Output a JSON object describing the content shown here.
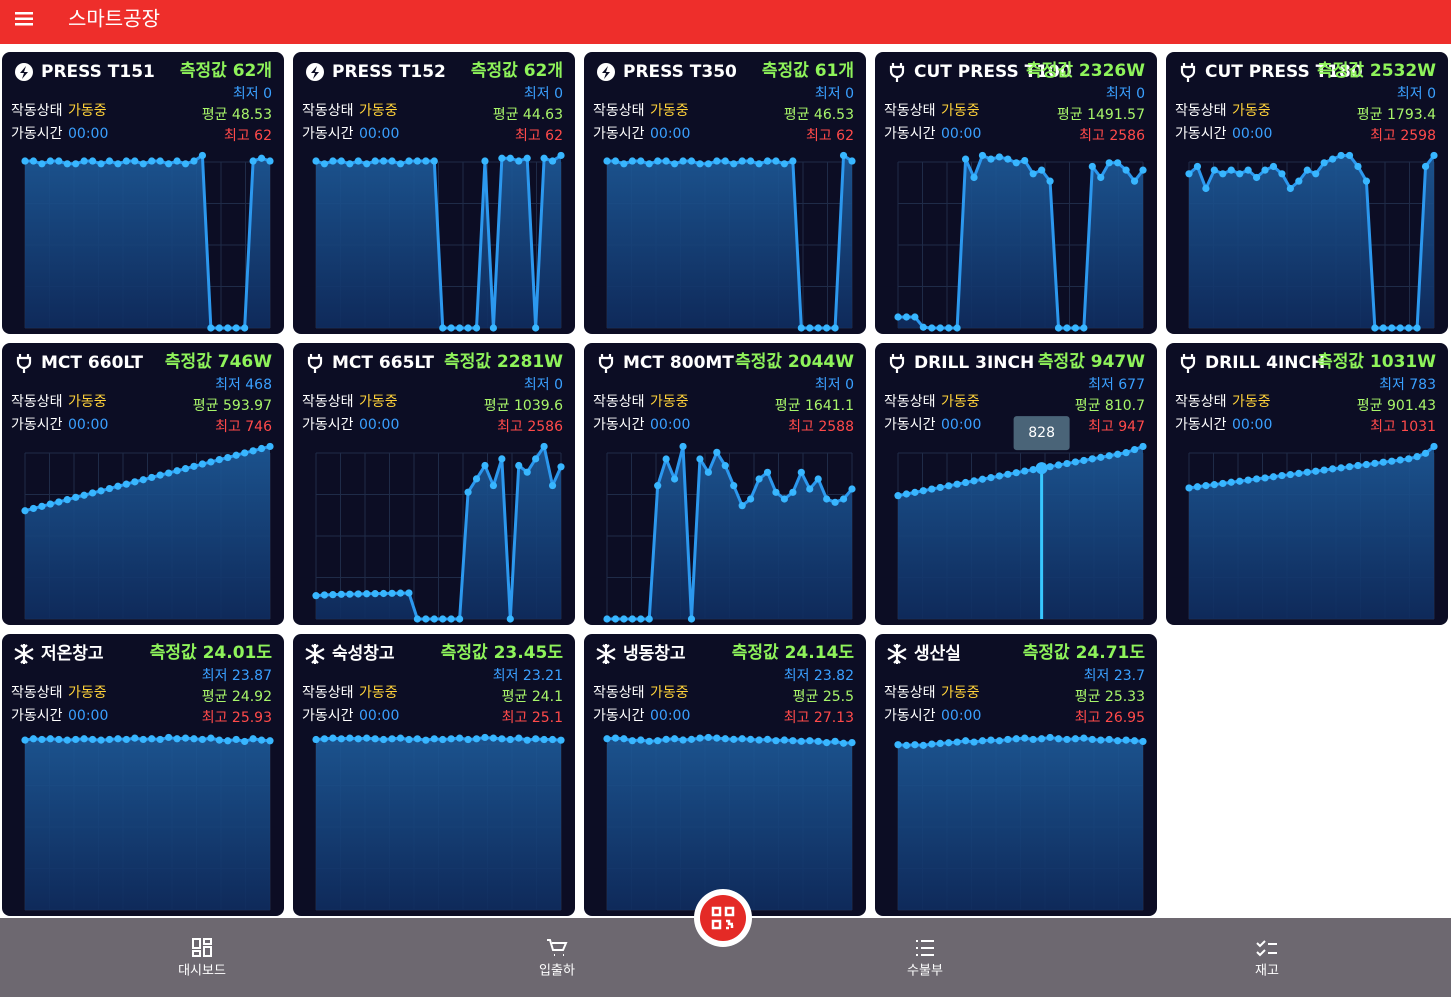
{
  "header": {
    "title": "스마트공장"
  },
  "cards": [
    {
      "icon": "bolt",
      "title": "PRESS T151",
      "measure": "측정값 62개",
      "min": "최저 0",
      "avg": "평균 48.53",
      "max": "최고 62",
      "status_label": "작동상태",
      "status": "가동중",
      "time_label": "가동시간",
      "time": "00:00",
      "values": [
        60,
        60,
        59,
        60,
        60,
        59,
        59,
        60,
        60,
        59,
        60,
        59,
        60,
        60,
        59,
        60,
        60,
        59,
        60,
        59,
        60,
        62,
        0,
        0,
        0,
        0,
        0,
        60,
        61,
        60
      ]
    },
    {
      "icon": "bolt",
      "title": "PRESS T152",
      "measure": "측정값 62개",
      "min": "최저 0",
      "avg": "평균 44.63",
      "max": "최고 62",
      "status_label": "작동상태",
      "status": "가동중",
      "time_label": "가동시간",
      "time": "00:00",
      "values": [
        60,
        59,
        60,
        60,
        59,
        60,
        59,
        60,
        60,
        60,
        59,
        60,
        60,
        60,
        60,
        0,
        0,
        0,
        0,
        0,
        60,
        0,
        61,
        61,
        60,
        61,
        0,
        61,
        60,
        62
      ]
    },
    {
      "icon": "bolt",
      "title": "PRESS T350",
      "measure": "측정값 61개",
      "min": "최저 0",
      "avg": "평균 46.53",
      "max": "최고 62",
      "status_label": "작동상태",
      "status": "가동중",
      "time_label": "가동시간",
      "time": "00:00",
      "values": [
        60,
        60,
        59,
        60,
        60,
        59,
        60,
        60,
        59,
        60,
        60,
        59,
        59,
        60,
        60,
        59,
        60,
        60,
        59,
        60,
        60,
        59,
        60,
        0,
        0,
        0,
        0,
        0,
        62,
        60
      ]
    },
    {
      "icon": "plug",
      "title": "CUT PRESS T100",
      "measure": "측정값 2326W",
      "min": "최저 0",
      "avg": "평균 1491.57",
      "max": "최고 2586",
      "status_label": "작동상태",
      "status": "가동중",
      "time_label": "가동시간",
      "time": "00:00",
      "values": [
        150,
        150,
        150,
        10,
        0,
        0,
        0,
        0,
        2300,
        2050,
        2350,
        2300,
        2330,
        2300,
        2250,
        2280,
        2100,
        2150,
        2000,
        0,
        0,
        0,
        0,
        2200,
        2050,
        2250,
        2250,
        2150,
        2000,
        2150
      ]
    },
    {
      "icon": "plug",
      "title": "CUT PRESS T180",
      "measure": "측정값 2532W",
      "min": "최저 0",
      "avg": "평균 1793.4",
      "max": "최고 2598",
      "status_label": "작동상태",
      "status": "가동중",
      "time_label": "가동시간",
      "time": "00:00",
      "values": [
        2100,
        2200,
        1900,
        2150,
        2100,
        2150,
        2100,
        2150,
        2050,
        2150,
        2200,
        2100,
        1900,
        2000,
        2150,
        2100,
        2250,
        2300,
        2350,
        2350,
        2200,
        2000,
        0,
        0,
        0,
        0,
        0,
        0,
        2200,
        2350
      ]
    },
    {
      "icon": "plug",
      "title": "MCT 660LT",
      "measure": "측정값 746W",
      "min": "최저 468",
      "avg": "평균 593.97",
      "max": "최고 746",
      "status_label": "작동상태",
      "status": "가동중",
      "time_label": "가동시간",
      "time": "00:00",
      "values": [
        468,
        478,
        487,
        497,
        506,
        516,
        526,
        535,
        545,
        554,
        564,
        574,
        583,
        593,
        602,
        612,
        622,
        631,
        641,
        650,
        660,
        670,
        679,
        689,
        698,
        708,
        718,
        727,
        737,
        746
      ]
    },
    {
      "icon": "plug",
      "title": "MCT 665LT",
      "measure": "측정값 2281W",
      "min": "최저 0",
      "avg": "평균 1039.6",
      "max": "최고 2586",
      "status_label": "작동상태",
      "status": "가동중",
      "time_label": "가동시간",
      "time": "00:00",
      "values": [
        350,
        360,
        365,
        370,
        372,
        375,
        378,
        380,
        382,
        385,
        388,
        390,
        0,
        0,
        0,
        0,
        0,
        0,
        1900,
        2100,
        2300,
        2000,
        2400,
        0,
        2300,
        2200,
        2400,
        2586,
        2000,
        2281
      ]
    },
    {
      "icon": "plug",
      "title": "MCT 800MT",
      "measure": "측정값 2044W",
      "min": "최저 0",
      "avg": "평균 1641.1",
      "max": "최고 2588",
      "status_label": "작동상태",
      "status": "가동중",
      "time_label": "가동시간",
      "time": "00:00",
      "values": [
        0,
        0,
        0,
        0,
        0,
        0,
        2000,
        2400,
        2100,
        2588,
        0,
        2400,
        2200,
        2500,
        2300,
        2000,
        1700,
        1800,
        2100,
        2200,
        1900,
        1800,
        1900,
        2200,
        1950,
        2100,
        1800,
        1750,
        1800,
        1950
      ]
    },
    {
      "icon": "plug",
      "title": "DRILL 3INCH",
      "measure": "측정값 947W",
      "min": "최저 677",
      "avg": "평균 810.7",
      "max": "최고 947",
      "status_label": "작동상태",
      "status": "가동중",
      "time_label": "가동시간",
      "time": "00:00",
      "values": [
        677,
        686,
        695,
        704,
        713,
        722,
        731,
        740,
        749,
        758,
        767,
        776,
        785,
        794,
        803,
        812,
        820,
        828,
        836,
        845,
        853,
        862,
        870,
        879,
        887,
        896,
        904,
        913,
        930,
        947
      ],
      "tooltip": "828"
    },
    {
      "icon": "plug",
      "title": "DRILL 4INCH",
      "measure": "측정값 1031W",
      "min": "최저 783",
      "avg": "평균 901.43",
      "max": "최고 1031",
      "status_label": "작동상태",
      "status": "가동중",
      "time_label": "가동시간",
      "time": "00:00",
      "values": [
        783,
        790,
        797,
        803,
        810,
        817,
        823,
        830,
        837,
        843,
        850,
        857,
        863,
        870,
        877,
        883,
        890,
        897,
        903,
        910,
        917,
        923,
        930,
        937,
        943,
        950,
        957,
        970,
        990,
        1031
      ]
    },
    {
      "icon": "snow",
      "title": "저온창고",
      "measure": "측정값 24.01도",
      "min": "최저 23.87",
      "avg": "평균 24.92",
      "max": "최고 25.93",
      "status_label": "작동상태",
      "status": "가동중",
      "time_label": "가동시간",
      "time": "00:00",
      "values": [
        25.5,
        25.7,
        25.6,
        25.7,
        25.6,
        25.5,
        25.6,
        25.7,
        25.6,
        25.5,
        25.6,
        25.7,
        25.6,
        25.8,
        25.6,
        25.7,
        25.6,
        25.9,
        25.7,
        25.8,
        25.7,
        25.6,
        25.8,
        25.5,
        25.4,
        25.6,
        25.3,
        25.7,
        25.5,
        25.4
      ]
    },
    {
      "icon": "snow",
      "title": "숙성창고",
      "measure": "측정값 23.45도",
      "min": "최저 23.21",
      "avg": "평균 24.1",
      "max": "최고 25.1",
      "status_label": "작동상태",
      "status": "가동중",
      "time_label": "가동시간",
      "time": "00:00",
      "values": [
        24.7,
        24.8,
        24.9,
        24.8,
        24.9,
        24.8,
        24.9,
        24.8,
        24.7,
        24.8,
        24.9,
        24.7,
        24.8,
        24.6,
        24.8,
        24.7,
        24.8,
        24.9,
        24.7,
        24.8,
        25.0,
        24.9,
        24.8,
        24.7,
        24.9,
        24.6,
        24.8,
        24.7,
        24.7,
        24.6
      ]
    },
    {
      "icon": "snow",
      "title": "냉동창고",
      "measure": "측정값 24.14도",
      "min": "최저 23.82",
      "avg": "평균 25.5",
      "max": "최고 27.13",
      "status_label": "작동상태",
      "status": "가동중",
      "time_label": "가동시간",
      "time": "00:00",
      "values": [
        26.6,
        26.7,
        26.6,
        26.3,
        26.4,
        26.2,
        26.3,
        26.5,
        26.6,
        26.4,
        26.5,
        26.7,
        26.8,
        26.7,
        26.6,
        26.5,
        26.6,
        26.5,
        26.4,
        26.5,
        26.3,
        26.4,
        26.3,
        26.2,
        26.3,
        26.2,
        26.0,
        26.2,
        25.9,
        26.0
      ]
    },
    {
      "icon": "snow",
      "title": "생산실",
      "measure": "측정값 24.71도",
      "min": "최저 23.7",
      "avg": "평균 25.33",
      "max": "최고 26.95",
      "status_label": "작동상태",
      "status": "가동중",
      "time_label": "가동시간",
      "time": "00:00",
      "values": [
        25.0,
        24.9,
        25.0,
        24.9,
        25.1,
        25.2,
        25.3,
        25.4,
        25.6,
        25.4,
        25.6,
        25.7,
        25.6,
        25.8,
        25.9,
        26.0,
        25.8,
        25.9,
        26.1,
        25.9,
        25.8,
        25.9,
        26.0,
        25.8,
        25.7,
        25.8,
        25.6,
        25.7,
        25.6,
        25.5
      ]
    }
  ],
  "nav": {
    "items": [
      {
        "label": "대시보드"
      },
      {
        "label": "입출하"
      },
      {
        "label": "수불부"
      },
      {
        "label": "재고"
      }
    ]
  }
}
